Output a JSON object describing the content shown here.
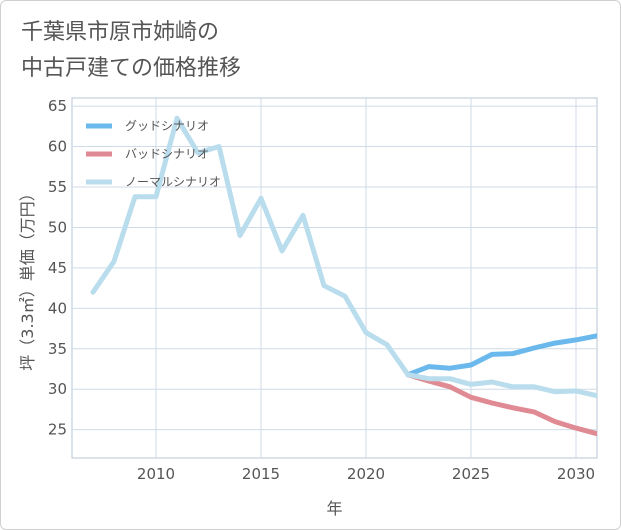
{
  "title": "千葉県市原市姉崎の\n中古戸建ての価格推移",
  "chart_data": {
    "type": "line",
    "title": "千葉県市原市姉崎の\n中古戸建ての価格推移",
    "xlabel": "年",
    "ylabel": "坪（3.3㎡）単価（万円）",
    "xlim": [
      2006,
      2031
    ],
    "ylim": [
      21.5,
      66
    ],
    "xticks": [
      2010,
      2015,
      2020,
      2025,
      2030
    ],
    "yticks": [
      25,
      30,
      35,
      40,
      45,
      50,
      55,
      60,
      65
    ],
    "grid": true,
    "legend_position": "top-left",
    "series": [
      {
        "name": "グッドシナリオ",
        "color": "#6bb8ed",
        "x": [
          2022,
          2023,
          2024,
          2025,
          2026,
          2027,
          2028,
          2029,
          2030,
          2031
        ],
        "y": [
          31.8,
          32.8,
          32.6,
          33.0,
          34.3,
          34.4,
          35.1,
          35.7,
          36.1,
          36.6
        ]
      },
      {
        "name": "バッドシナリオ",
        "color": "#e08a93",
        "x": [
          2022,
          2023,
          2024,
          2025,
          2026,
          2027,
          2028,
          2029,
          2030,
          2031
        ],
        "y": [
          31.8,
          31.0,
          30.3,
          29.0,
          28.3,
          27.7,
          27.2,
          26.0,
          25.2,
          24.5
        ]
      },
      {
        "name": "ノーマルシナリオ",
        "color": "#b9dded",
        "x": [
          2007,
          2008,
          2009,
          2010,
          2011,
          2012,
          2013,
          2014,
          2015,
          2016,
          2017,
          2018,
          2019,
          2020,
          2021,
          2022,
          2023,
          2024,
          2025,
          2026,
          2027,
          2028,
          2029,
          2030,
          2031
        ],
        "y": [
          42.0,
          45.8,
          53.8,
          53.8,
          63.5,
          59.2,
          60.0,
          49.0,
          53.6,
          47.1,
          51.5,
          42.8,
          41.5,
          37.0,
          35.5,
          31.8,
          31.3,
          31.3,
          30.6,
          30.9,
          30.3,
          30.3,
          29.7,
          29.8,
          29.2
        ]
      }
    ]
  }
}
